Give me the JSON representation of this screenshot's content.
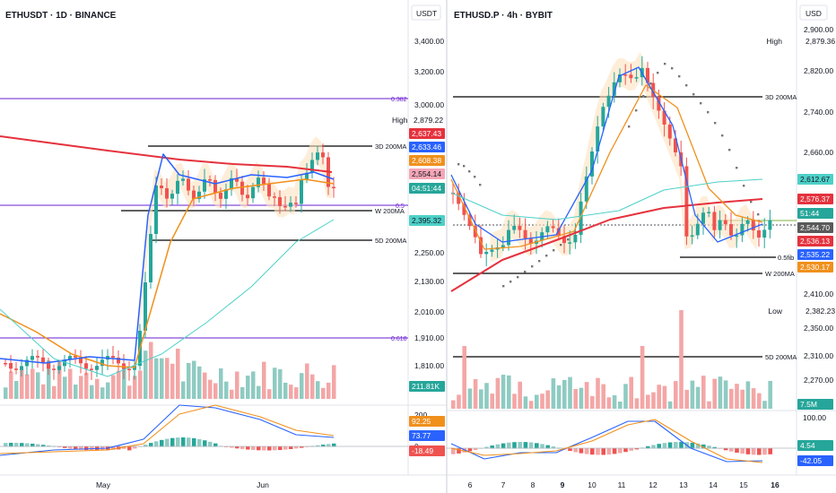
{
  "colors": {
    "up": "#26a69a",
    "down": "#ef5350",
    "volUp": "#8fcbc2",
    "volDown": "#f4a6a6",
    "ma_red": "#e5323d",
    "ma_orange": "#f0901c",
    "ma_blue": "#2962ff",
    "ma_teal": "#4dd0c8",
    "fib": "#6a1fd1",
    "sar": "#777777",
    "macd_blue": "#2962ff",
    "macd_orange": "#f0901c"
  },
  "left": {
    "title": "ETHUSDT · 1D · BINANCE",
    "currency": "USDT",
    "y_ticks": [
      "3,400.00",
      "3,200.00",
      "3,000.00",
      "2,250.00",
      "2,130.00",
      "2,010.00",
      "1,910.00",
      "1,810.00"
    ],
    "x_ticks": [
      "May",
      "Jun"
    ],
    "badges": [
      {
        "label": "High",
        "value": "2,879.22",
        "kind": "high"
      },
      {
        "value": "2,637.43",
        "color": "#e5323d"
      },
      {
        "value": "2,633.46",
        "color": "#2962ff"
      },
      {
        "value": "2,608.38",
        "color": "#f0901c"
      },
      {
        "value": "2,554.14",
        "color": "#f4a6b6",
        "dark": true
      },
      {
        "value": "04:51:44",
        "color": "#26a69a"
      },
      {
        "value": "2,395.32",
        "color": "#4dd0c8",
        "dark": true
      },
      {
        "value": "211.81K",
        "color": "#26a69a"
      },
      {
        "value": "92.25",
        "color": "#f0901c"
      },
      {
        "value": "73.77",
        "color": "#2962ff"
      },
      {
        "value": "-18.49",
        "color": "#ef5350"
      }
    ],
    "line_labels": {
      "d3": "3D 200MA",
      "w": "W 200MA",
      "d5": "5D 200MA"
    },
    "fib_labels": {
      "f0382": "0.382",
      "f05": "0.5",
      "f0618": "0.618"
    },
    "macd_ticks": [
      "200",
      "0"
    ]
  },
  "right": {
    "title": "ETHUSD.P · 4h · BYBIT",
    "currency": "USD",
    "y_ticks": [
      "2,900.00",
      "2,820.00",
      "2,740.00",
      "2,660.00",
      "2,410.00",
      "2,350.00",
      "2,310.00",
      "2,270.00"
    ],
    "x_ticks": [
      "6",
      "7",
      "8",
      "9",
      "10",
      "11",
      "12",
      "13",
      "14",
      "15",
      "16"
    ],
    "badges": [
      {
        "label": "High",
        "value": "2,879.36",
        "kind": "high"
      },
      {
        "value": "2,612.67",
        "color": "#4dd0c8",
        "dark": true
      },
      {
        "value": "2,576.37",
        "color": "#e5323d"
      },
      {
        "value": "51:44",
        "color": "#26a69a"
      },
      {
        "value": "2,544.70",
        "color": "#5a5a5a"
      },
      {
        "value": "2,536.13",
        "color": "#e5323d"
      },
      {
        "value": "2,535.22",
        "color": "#2962ff"
      },
      {
        "value": "2,530.17",
        "color": "#f0901c"
      },
      {
        "label": "Low",
        "value": "2,382.23",
        "kind": "high"
      },
      {
        "value": "7.5M",
        "color": "#26a69a"
      },
      {
        "value": "4.54",
        "color": "#26a69a"
      },
      {
        "value": "-42.05",
        "color": "#2962ff"
      }
    ],
    "line_labels": {
      "d3": "3D 200MA",
      "fib05": "0.5fib",
      "w": "W 200MA",
      "d5": "5D 200MA"
    },
    "macd_ticks": [
      "100.00"
    ]
  }
}
